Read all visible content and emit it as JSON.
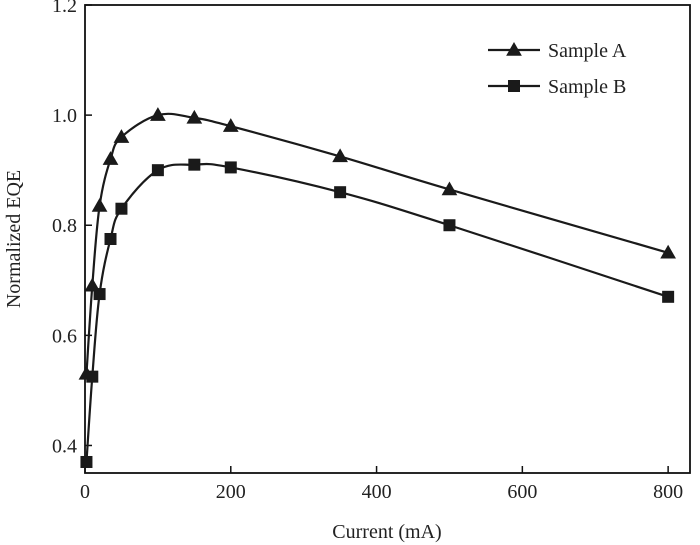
{
  "chart_data": {
    "type": "line",
    "title": "",
    "xlabel": "Current (mA)",
    "ylabel": "Normalized EQE",
    "xlim": [
      0,
      830
    ],
    "ylim": [
      0.35,
      1.2
    ],
    "xticks": [
      0,
      200,
      400,
      600,
      800
    ],
    "yticks": [
      0.4,
      0.6,
      0.8,
      1.0,
      1.2
    ],
    "xtick_labels": [
      "0",
      "200",
      "400",
      "600",
      "800"
    ],
    "ytick_labels": [
      "0.4",
      "0.6",
      "0.8",
      "1.0",
      "1.2"
    ],
    "grid": false,
    "legend_position": "top-right",
    "line_color": "#1a1a1a",
    "series": [
      {
        "name": "Sample A",
        "marker": "triangle",
        "x": [
          2,
          10,
          20,
          35,
          50,
          100,
          150,
          200,
          350,
          500,
          800
        ],
        "y": [
          0.53,
          0.69,
          0.835,
          0.92,
          0.96,
          1.0,
          0.995,
          0.98,
          0.925,
          0.865,
          0.75
        ]
      },
      {
        "name": "Sample B",
        "marker": "square",
        "x": [
          2,
          10,
          20,
          35,
          50,
          100,
          150,
          200,
          350,
          500,
          800
        ],
        "y": [
          0.37,
          0.525,
          0.675,
          0.775,
          0.83,
          0.9,
          0.91,
          0.905,
          0.86,
          0.8,
          0.67
        ]
      }
    ]
  }
}
